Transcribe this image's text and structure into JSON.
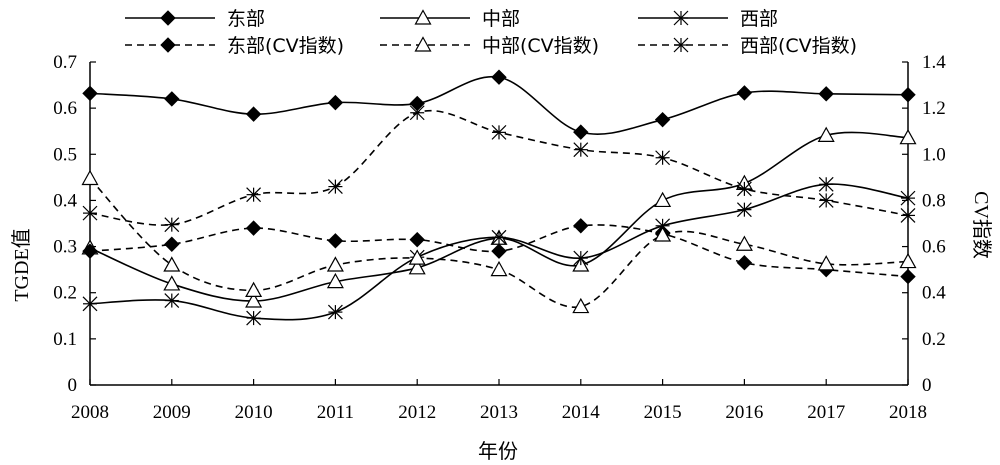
{
  "chart_data": {
    "type": "line",
    "xlabel": "年份",
    "ylabel_left": "TGDE值",
    "ylabel_right": "CV指数",
    "x": [
      "2008",
      "2009",
      "2010",
      "2011",
      "2012",
      "2013",
      "2014",
      "2015",
      "2016",
      "2017",
      "2018"
    ],
    "ylim_left": [
      0,
      0.7
    ],
    "yticks_left": [
      "0",
      "0.1",
      "0.2",
      "0.3",
      "0.4",
      "0.5",
      "0.6",
      "0.7"
    ],
    "ylim_right": [
      0,
      1.4
    ],
    "yticks_right": [
      "0",
      "0.2",
      "0.4",
      "0.6",
      "0.8",
      "1.0",
      "1.2",
      "1.4"
    ],
    "grid": false,
    "legend_position": "top",
    "series": [
      {
        "name": "东部",
        "axis": "left",
        "style": "solid",
        "marker": "diamond",
        "values": [
          0.632,
          0.62,
          0.587,
          0.612,
          0.61,
          0.667,
          0.548,
          0.575,
          0.633,
          0.631,
          0.629
        ]
      },
      {
        "name": "中部",
        "axis": "left",
        "style": "solid",
        "marker": "triangle",
        "values": [
          0.297,
          0.219,
          0.182,
          0.224,
          0.254,
          0.318,
          0.26,
          0.4,
          0.437,
          0.541,
          0.536
        ]
      },
      {
        "name": "西部",
        "axis": "left",
        "style": "solid",
        "marker": "asterisk",
        "values": [
          0.176,
          0.183,
          0.145,
          0.158,
          0.277,
          0.32,
          0.275,
          0.345,
          0.38,
          0.435,
          0.405
        ]
      },
      {
        "name": "东部(CV指数)",
        "axis": "right",
        "style": "dashed",
        "marker": "diamond",
        "values": [
          0.58,
          0.61,
          0.68,
          0.625,
          0.63,
          0.58,
          0.69,
          0.655,
          0.53,
          0.5,
          0.47
        ]
      },
      {
        "name": "中部(CV指数)",
        "axis": "right",
        "style": "dashed",
        "marker": "triangle",
        "values": [
          0.895,
          0.52,
          0.41,
          0.52,
          0.55,
          0.5,
          0.34,
          0.65,
          0.61,
          0.525,
          0.535
        ]
      },
      {
        "name": "西部(CV指数)",
        "axis": "right",
        "style": "dashed",
        "marker": "asterisk",
        "values": [
          0.745,
          0.695,
          0.825,
          0.86,
          1.18,
          1.095,
          1.02,
          0.985,
          0.85,
          0.8,
          0.735
        ]
      }
    ]
  }
}
